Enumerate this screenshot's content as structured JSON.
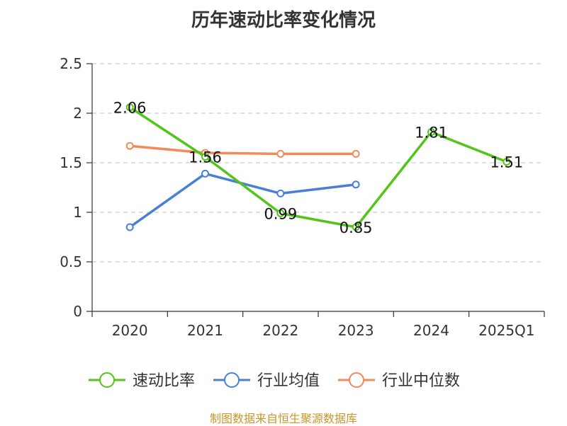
{
  "chart_data": {
    "type": "line",
    "title": "历年速动比率变化情况",
    "categories": [
      "2020",
      "2021",
      "2022",
      "2023",
      "2024",
      "2025Q1"
    ],
    "ylim": [
      0,
      2.5
    ],
    "yticks": [
      "0",
      "0.5",
      "1",
      "1.5",
      "2",
      "2.5"
    ],
    "ytick_values": [
      0,
      0.5,
      1,
      1.5,
      2,
      2.5
    ],
    "grid": true,
    "legend_position": "bottom",
    "series": [
      {
        "name": "速动比率",
        "color": "#52c41a",
        "marker": "open-circle",
        "values": [
          2.06,
          1.56,
          0.99,
          0.85,
          1.81,
          1.51
        ],
        "labels": [
          "2.06",
          "1.56",
          "0.99",
          "0.85",
          "1.81",
          "1.51"
        ]
      },
      {
        "name": "行业均值",
        "color": "#4a7fd6",
        "marker": "open-circle",
        "values": [
          0.85,
          1.39,
          1.19,
          1.28,
          null,
          null
        ]
      },
      {
        "name": "行业中位数",
        "color": "#f4895a",
        "marker": "open-circle",
        "values": [
          1.67,
          1.6,
          1.59,
          1.59,
          null,
          null
        ]
      }
    ]
  },
  "footer": {
    "source": "制图数据来自恒生聚源数据库"
  }
}
